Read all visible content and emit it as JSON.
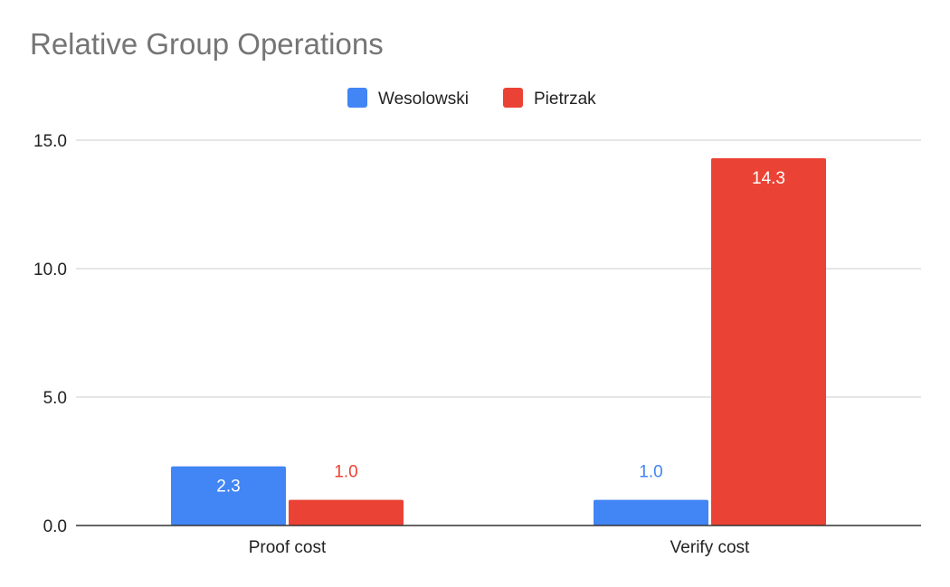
{
  "chart_data": {
    "type": "bar",
    "title": "Relative Group Operations",
    "categories": [
      "Proof cost",
      "Verify cost"
    ],
    "series": [
      {
        "name": "Wesolowski",
        "color": "#4285f4",
        "values": [
          2.3,
          1.0
        ],
        "labels": [
          "2.3",
          "1.0"
        ]
      },
      {
        "name": "Pietrzak",
        "color": "#ea4335",
        "values": [
          1.0,
          14.3
        ],
        "labels": [
          "1.0",
          "14.3"
        ]
      }
    ],
    "ylim": [
      0,
      15
    ],
    "yticks": [
      0,
      5,
      10,
      15
    ],
    "ytick_labels": [
      "0.0",
      "5.0",
      "10.0",
      "15.0"
    ],
    "xlabel": "",
    "ylabel": "",
    "grid": true,
    "legend_position": "top-center"
  }
}
